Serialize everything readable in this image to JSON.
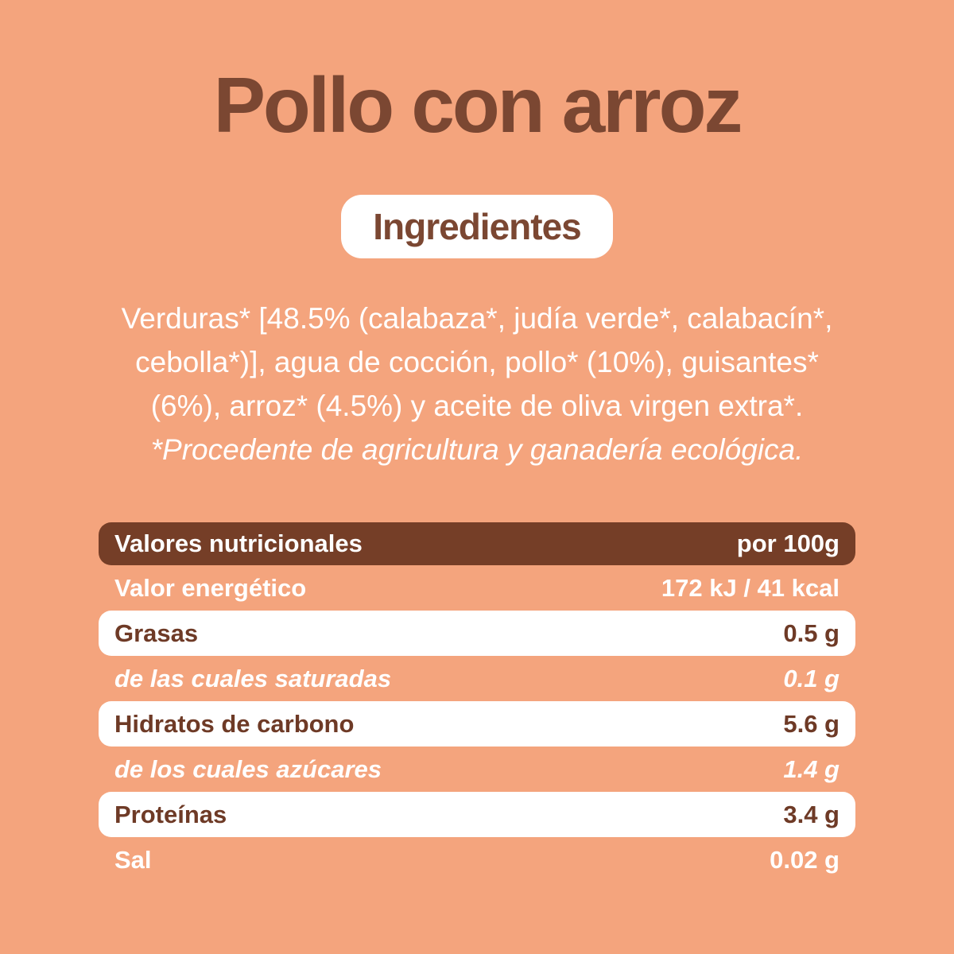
{
  "title": "Pollo con arroz",
  "ingredients": {
    "badge_label": "Ingredientes",
    "lines": [
      "Verduras* [48.5% (calabaza*, judía verde*, calabacín*,",
      "cebolla*)], agua de cocción, pollo* (10%), guisantes*",
      "(6%), arroz* (4.5%) y aceite de oliva virgen extra*."
    ],
    "note": "*Procedente de agricultura y ganadería ecológica."
  },
  "nutrition_table": {
    "header_label": "Valores nutricionales",
    "header_per": "por 100g",
    "rows": [
      {
        "label": "Valor energético",
        "value": "172 kJ / 41 kcal",
        "style": "plain"
      },
      {
        "label": "Grasas",
        "value": "0.5 g",
        "style": "white"
      },
      {
        "label": "de las cuales saturadas",
        "value": "0.1 g",
        "style": "sub"
      },
      {
        "label": "Hidratos de carbono",
        "value": "5.6 g",
        "style": "white"
      },
      {
        "label": "de los cuales azúcares",
        "value": "1.4 g",
        "style": "sub"
      },
      {
        "label": "Proteínas",
        "value": "3.4 g",
        "style": "white"
      },
      {
        "label": "Sal",
        "value": "0.02 g",
        "style": "plain"
      }
    ]
  },
  "colors": {
    "background": "#F4A47D",
    "brown_dark": "#753E27",
    "brown_text": "#6E3A26",
    "title_brown": "#7B4732",
    "row_white": "#FFFFFF",
    "text_white": "#FFFFFF"
  }
}
